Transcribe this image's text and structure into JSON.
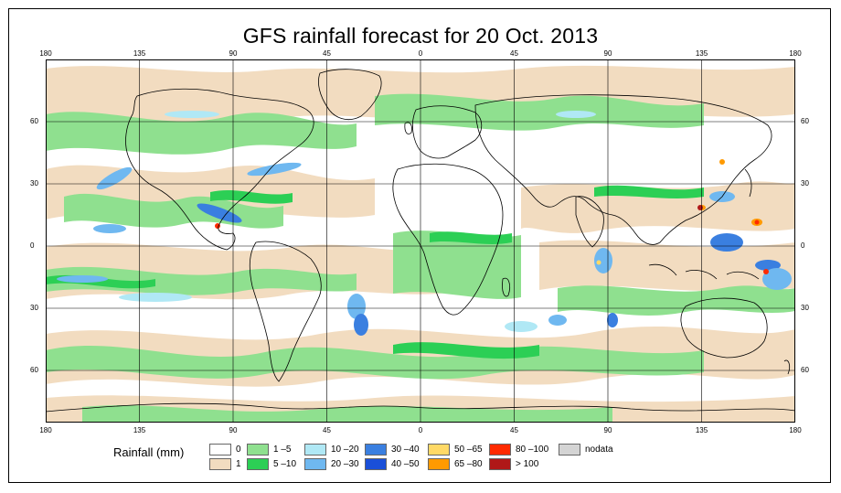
{
  "title": "GFS rainfall forecast for 20 Oct. 2013",
  "map": {
    "lon_ticks_top": [
      "180",
      "135",
      "90",
      "45",
      "0",
      "45",
      "90",
      "135",
      "180"
    ],
    "lon_ticks_bottom": [
      "180",
      "135",
      "90",
      "45",
      "0",
      "45",
      "90",
      "135",
      "180"
    ],
    "lat_ticks_left": [
      "60",
      "30",
      "0",
      "30",
      "60"
    ],
    "lat_ticks_right": [
      "60",
      "30",
      "0",
      "30",
      "60"
    ],
    "colors": {
      "zero": "#ffffff",
      "one": "#f2dcc0",
      "c1_5": "#8fe08f",
      "c5_10": "#2ccf55",
      "c10_20": "#b0e8f5",
      "c20_30": "#6fb8f0",
      "c30_40": "#3a7fe0",
      "c40_50": "#1a4fd8",
      "c50_65": "#ffd966",
      "c65_80": "#ff9a00",
      "c80_100": "#ff2a00",
      "c100": "#b01818",
      "nodata": "#d4d4d4"
    }
  },
  "legend": {
    "title": "Rainfall (mm)",
    "items": [
      {
        "label": "0",
        "color": "#ffffff"
      },
      {
        "label": "1",
        "color": "#f2dcc0"
      },
      {
        "label": "1 –5",
        "color": "#8fe08f"
      },
      {
        "label": "5 –10",
        "color": "#2ccf55"
      },
      {
        "label": "10 –20",
        "color": "#b0e8f5"
      },
      {
        "label": "20 –30",
        "color": "#6fb8f0"
      },
      {
        "label": "30 –40",
        "color": "#3a7fe0"
      },
      {
        "label": "40 –50",
        "color": "#1a4fd8"
      },
      {
        "label": "50 –65",
        "color": "#ffd966"
      },
      {
        "label": "65 –80",
        "color": "#ff9a00"
      },
      {
        "label": "80 –100",
        "color": "#ff2a00"
      },
      {
        "label": "> 100",
        "color": "#b01818"
      },
      {
        "label": "nodata",
        "color": "#d4d4d4"
      }
    ]
  }
}
